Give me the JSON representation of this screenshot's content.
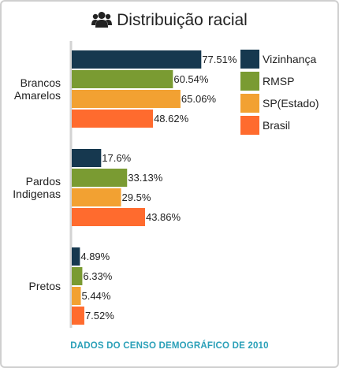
{
  "header": {
    "title": "Distribuição racial",
    "icon": "users-icon"
  },
  "footer": {
    "note": "DADOS DO CENSO DEMOGRÁFICO DE 2010"
  },
  "chart_data": {
    "type": "bar",
    "orientation": "horizontal",
    "title": "Distribuição racial",
    "xlim": [
      0,
      100
    ],
    "value_suffix": "%",
    "grid": false,
    "legend_position": "top-right",
    "categories": [
      [
        "Brancos",
        "Amarelos"
      ],
      [
        "Pardos",
        "Indigenas"
      ],
      [
        "Pretos"
      ]
    ],
    "series": [
      {
        "name": "Vizinhança",
        "color": "#16384f",
        "values": [
          77.51,
          17.6,
          4.89
        ],
        "labels": [
          "77.51%",
          "17.6%",
          "4.89%"
        ]
      },
      {
        "name": "RMSP",
        "color": "#7a9b32",
        "values": [
          60.54,
          33.13,
          6.33
        ],
        "labels": [
          "60.54%",
          "33.13%",
          "6.33%"
        ]
      },
      {
        "name": "SP(Estado)",
        "color": "#f2a132",
        "values": [
          65.06,
          29.5,
          5.44
        ],
        "labels": [
          "65.06%",
          "29.5%",
          "5.44%"
        ]
      },
      {
        "name": "Brasil",
        "color": "#ff6b2e",
        "values": [
          48.62,
          43.86,
          7.52
        ],
        "labels": [
          "48.62%",
          "43.86%",
          "7.52%"
        ]
      }
    ]
  }
}
